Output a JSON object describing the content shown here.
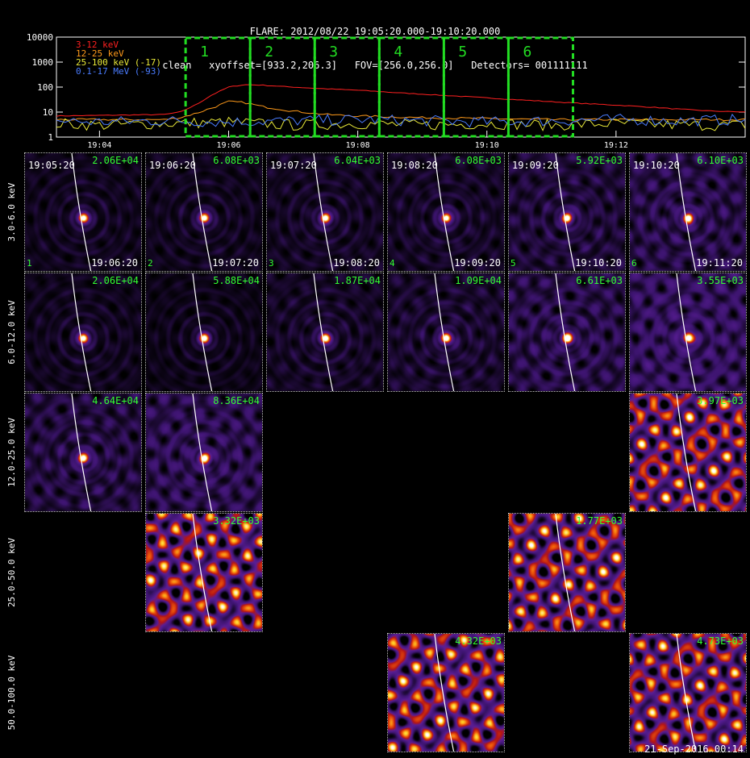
{
  "header": {
    "line1": "FLARE: 2012/08/22 19:05:20.000-19:10:20.000",
    "line2": "clean   xyoffset=[933.2,206.3]   FOV=[256.0,256.0]   Detectors= 001111111"
  },
  "chart_data": {
    "type": "line",
    "yscale": "log",
    "ylim": [
      1,
      10000
    ],
    "yticks": [
      "10000",
      "1000",
      "100",
      "10",
      "1"
    ],
    "xlim": [
      "19:03:20",
      "19:14:00"
    ],
    "xticks": [
      "19:04",
      "19:06",
      "19:08",
      "19:10",
      "19:12"
    ],
    "legend_position": "top-left",
    "series": [
      {
        "name": "3-12 keV",
        "color": "#ff2020",
        "x": [
          "19:03:20",
          "19:05:00",
          "19:05:15",
          "19:05:30",
          "19:05:45",
          "19:06:00",
          "19:06:15",
          "19:06:30",
          "19:07:00",
          "19:07:30",
          "19:08:00",
          "19:08:30",
          "19:09:00",
          "19:09:30",
          "19:10:00",
          "19:10:30",
          "19:11:00",
          "19:11:30",
          "19:12:00",
          "19:12:30",
          "19:13:00",
          "19:13:30",
          "19:14:00"
        ],
        "y": [
          7,
          8,
          10,
          20,
          50,
          100,
          125,
          120,
          100,
          85,
          75,
          62,
          52,
          44,
          37,
          31,
          26,
          22,
          19,
          16,
          13,
          11,
          10
        ]
      },
      {
        "name": "12-25 keV",
        "color": "#ff9a1a",
        "x": [
          "19:03:20",
          "19:05:00",
          "19:05:15",
          "19:05:30",
          "19:05:45",
          "19:06:00",
          "19:06:15",
          "19:06:30",
          "19:07:00",
          "19:07:30",
          "19:08:00",
          "19:09:00",
          "19:10:00",
          "19:11:00",
          "19:12:00",
          "19:13:00",
          "19:14:00"
        ],
        "y": [
          5,
          5,
          6,
          9,
          15,
          26,
          24,
          17,
          11,
          8,
          7,
          6,
          5.5,
          5,
          5,
          5,
          5
        ]
      },
      {
        "name": "25-100 keV (-17)",
        "color": "#e8e838",
        "x": [
          "19:03:20",
          "19:04:00",
          "19:05:00",
          "19:06:00",
          "19:07:00",
          "19:08:00",
          "19:09:00",
          "19:10:00",
          "19:11:00",
          "19:12:00",
          "19:13:00",
          "19:14:00"
        ],
        "y": [
          3.5,
          3,
          3.5,
          4,
          3,
          3.5,
          3,
          3.5,
          3,
          3.5,
          3,
          3
        ]
      },
      {
        "name": "0.1-17 MeV (-93)",
        "color": "#4a7cff",
        "x": [
          "19:03:20",
          "19:04:00",
          "19:05:00",
          "19:06:00",
          "19:07:00",
          "19:08:00",
          "19:09:00",
          "19:10:00",
          "19:11:00",
          "19:12:00",
          "19:13:00",
          "19:14:00"
        ],
        "y": [
          4.5,
          4,
          4.5,
          4,
          4.5,
          5,
          4.5,
          4,
          4.5,
          5,
          4.5,
          5
        ]
      }
    ],
    "intervals": [
      {
        "label": "1",
        "start": "19:05:20",
        "end": "19:06:20"
      },
      {
        "label": "2",
        "start": "19:06:20",
        "end": "19:07:20"
      },
      {
        "label": "3",
        "start": "19:07:20",
        "end": "19:08:20"
      },
      {
        "label": "4",
        "start": "19:08:20",
        "end": "19:09:20"
      },
      {
        "label": "5",
        "start": "19:09:20",
        "end": "19:10:20"
      },
      {
        "label": "6",
        "start": "19:10:20",
        "end": "19:11:20"
      }
    ],
    "interval_color": "#22dd22"
  },
  "images": {
    "row_labels": [
      "3.0-6.0 keV",
      "6.0-12.0 keV",
      "12.0-25.0 keV",
      "25.0-50.0 keV",
      "50.0-100.0 keV"
    ],
    "panels": [
      {
        "row": 0,
        "col": 0,
        "peak": "2.06E+04",
        "start": "19:05:20",
        "end": "19:06:20",
        "num": "1",
        "style": "source",
        "bg": 0.15
      },
      {
        "row": 0,
        "col": 1,
        "peak": "6.08E+03",
        "start": "19:06:20",
        "end": "19:07:20",
        "num": "2",
        "style": "source",
        "bg": 0.15
      },
      {
        "row": 0,
        "col": 2,
        "peak": "6.04E+03",
        "start": "19:07:20",
        "end": "19:08:20",
        "num": "3",
        "style": "source",
        "bg": 0.18
      },
      {
        "row": 0,
        "col": 3,
        "peak": "6.08E+03",
        "start": "19:08:20",
        "end": "19:09:20",
        "num": "4",
        "style": "source",
        "bg": 0.2
      },
      {
        "row": 0,
        "col": 4,
        "peak": "5.92E+03",
        "start": "19:09:20",
        "end": "19:10:20",
        "num": "5",
        "style": "source",
        "bg": 0.3
      },
      {
        "row": 0,
        "col": 5,
        "peak": "6.10E+03",
        "start": "19:10:20",
        "end": "19:11:20",
        "num": "6",
        "style": "source",
        "bg": 0.4
      },
      {
        "row": 1,
        "col": 0,
        "peak": "2.06E+04",
        "style": "source",
        "bg": 0.15
      },
      {
        "row": 1,
        "col": 1,
        "peak": "5.88E+04",
        "style": "source",
        "bg": 0.12
      },
      {
        "row": 1,
        "col": 2,
        "peak": "1.87E+04",
        "style": "source",
        "bg": 0.2
      },
      {
        "row": 1,
        "col": 3,
        "peak": "1.09E+04",
        "style": "source",
        "bg": 0.25
      },
      {
        "row": 1,
        "col": 4,
        "peak": "6.61E+03",
        "style": "source",
        "bg": 0.4
      },
      {
        "row": 1,
        "col": 5,
        "peak": "3.55E+03",
        "style": "source",
        "bg": 0.55
      },
      {
        "row": 2,
        "col": 0,
        "peak": "4.64E+04",
        "style": "source",
        "bg": 0.35
      },
      {
        "row": 2,
        "col": 1,
        "peak": "8.36E+04",
        "style": "source",
        "bg": 0.45
      },
      {
        "row": 2,
        "col": 5,
        "peak": "3.97E+03",
        "style": "noise",
        "bg": 1.0
      },
      {
        "row": 3,
        "col": 1,
        "peak": "3.32E+03",
        "style": "noise",
        "bg": 1.0
      },
      {
        "row": 3,
        "col": 4,
        "peak": "1.77E+03",
        "style": "noise",
        "bg": 1.0
      },
      {
        "row": 4,
        "col": 3,
        "peak": "4.32E+03",
        "style": "noise",
        "bg": 1.0
      },
      {
        "row": 4,
        "col": 5,
        "peak": "4.73E+03",
        "style": "noise",
        "bg": 1.0
      }
    ]
  },
  "footer": {
    "timestamp": "21-Sep-2016 00:14"
  }
}
